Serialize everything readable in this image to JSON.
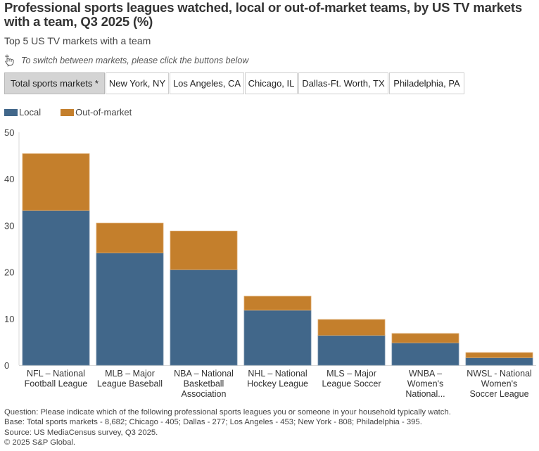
{
  "header": {
    "title": "Professional sports leagues watched, local or out-of-market teams, by US TV markets with a team, Q3 2025 (%)",
    "subtitle": "Top 5 US TV markets with a team",
    "hint_icon": "hand-pointer-icon",
    "hint": "To switch between markets, please click the buttons below"
  },
  "markets": [
    {
      "label": "Total sports markets *",
      "active": true
    },
    {
      "label": "New York, NY",
      "active": false
    },
    {
      "label": "Los Angeles, CA",
      "active": false
    },
    {
      "label": "Chicago, IL",
      "active": false
    },
    {
      "label": "Dallas-Ft. Worth, TX",
      "active": false
    },
    {
      "label": "Philadelphia, PA",
      "active": false
    }
  ],
  "colors": {
    "local": "#41678a",
    "out_of_market": "#c47f2c",
    "axis": "#d9d9d9",
    "active_button": "#d4d4d4"
  },
  "chart_data": {
    "type": "bar",
    "stacked": true,
    "title": "Professional sports leagues watched, local or out-of-market teams, by US TV markets with a team, Q3 2025 (%)",
    "xlabel": "",
    "ylabel": "",
    "ylim": [
      0,
      50
    ],
    "yticks": [
      0,
      10,
      20,
      30,
      40,
      50
    ],
    "grid": false,
    "legend": "top-left",
    "categories": [
      [
        "NFL – National",
        "Football League"
      ],
      [
        "MLB – Major",
        "League Baseball"
      ],
      [
        "NBA – National",
        "Basketball",
        "Association"
      ],
      [
        "NHL – National",
        "Hockey League"
      ],
      [
        "MLS – Major",
        "League Soccer"
      ],
      [
        "WNBA –",
        "Women's",
        "National..."
      ],
      [
        "NWSL - National",
        "Women's",
        "Soccer League"
      ]
    ],
    "series": [
      {
        "name": "Local",
        "values": [
          33.2,
          24.1,
          20.5,
          11.8,
          6.4,
          4.8,
          1.6
        ]
      },
      {
        "name": "Out-of-market",
        "values": [
          12.2,
          6.4,
          8.3,
          3.0,
          3.4,
          2.0,
          1.1
        ]
      }
    ]
  },
  "footer": {
    "question": "Question: Please indicate which of the following professional sports leagues you or someone in your household typically watch.",
    "base": "Base: Total sports markets - 8,682; Chicago - 405; Dallas - 277; Los Angeles - 453; New York - 808; Philadelphia - 395.",
    "source": "Source: US MediaCensus survey, Q3 2025.",
    "copyright": "© 2025 S&P Global."
  }
}
